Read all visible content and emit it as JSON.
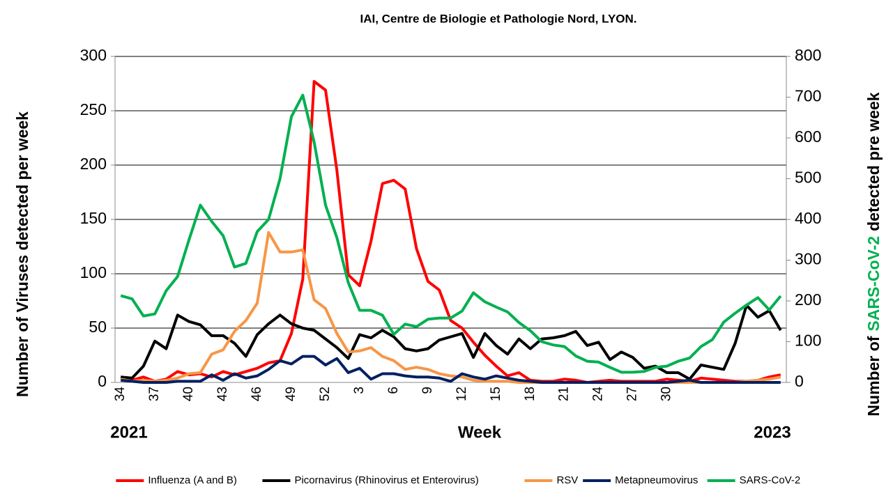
{
  "chart_data": {
    "type": "line",
    "title": "IAI, Centre de Biologie et Pathologie Nord, LYON.",
    "ylabel": "Number of Viruses detected  per week",
    "y2label": [
      "Number of",
      "SARS-CoV-2",
      "detected  pre week"
    ],
    "xlabel": "Week",
    "annotations": [
      "2021",
      "2023"
    ],
    "categories": [
      34,
      null,
      null,
      37,
      null,
      null,
      40,
      null,
      null,
      43,
      null,
      null,
      46,
      null,
      null,
      49,
      null,
      null,
      52,
      null,
      null,
      3,
      null,
      null,
      6,
      null,
      null,
      9,
      null,
      null,
      12,
      null,
      null,
      15,
      null,
      null,
      18,
      null,
      null,
      21,
      null,
      null,
      24,
      null,
      null,
      27,
      null,
      null,
      30,
      null,
      null,
      null,
      null,
      null,
      null,
      null,
      null,
      null,
      null
    ],
    "ylim": [
      0,
      300
    ],
    "yticks": [
      0,
      50,
      100,
      150,
      200,
      250,
      300
    ],
    "y2lim": [
      0,
      800
    ],
    "y2ticks": [
      0,
      100,
      200,
      300,
      400,
      500,
      600,
      700,
      800
    ],
    "grid": true,
    "legend": "bottom",
    "series": [
      {
        "name": "Influenza (A and B)",
        "color": "#ff0000",
        "values": [
          5,
          2,
          5,
          1,
          3,
          10,
          7,
          8,
          5,
          10,
          7,
          10,
          13,
          18,
          20,
          45,
          95,
          277,
          269,
          195,
          99,
          89,
          130,
          183,
          186,
          178,
          123,
          93,
          85,
          57,
          50,
          37,
          25,
          15,
          6,
          9,
          2,
          1,
          1,
          3,
          2,
          0,
          1,
          2,
          1,
          1,
          1,
          1,
          3,
          2,
          1,
          4,
          3,
          2,
          1,
          1,
          2,
          5,
          7
        ]
      },
      {
        "name": "Picornavirus (Rhinovirus et Enterovirus)",
        "color": "#000000",
        "values": [
          5,
          4,
          15,
          38,
          31,
          62,
          56,
          53,
          43,
          43,
          36,
          24,
          44,
          54,
          62,
          54,
          50,
          48,
          40,
          32,
          22,
          44,
          41,
          48,
          42,
          31,
          29,
          31,
          39,
          42,
          45,
          23,
          45,
          34,
          26,
          40,
          31,
          40,
          41,
          43,
          47,
          34,
          37,
          21,
          28,
          23,
          13,
          15,
          9,
          9,
          3,
          16,
          14,
          12,
          36,
          71,
          60,
          66,
          48
        ]
      },
      {
        "name": "RSV",
        "color": "#f79646",
        "values": [
          3,
          1,
          2,
          1,
          2,
          4,
          8,
          9,
          26,
          30,
          47,
          57,
          73,
          138,
          120,
          120,
          122,
          76,
          68,
          45,
          28,
          29,
          32,
          24,
          20,
          12,
          14,
          12,
          8,
          6,
          5,
          2,
          1,
          1,
          1,
          0,
          0,
          0,
          0,
          0,
          0,
          0,
          0,
          0,
          0,
          0,
          0,
          0,
          0,
          0,
          0,
          0,
          0,
          0,
          0,
          1,
          2,
          3,
          5
        ]
      },
      {
        "name": "Metapneumovirus",
        "color": "#002060",
        "values": [
          2,
          1,
          0,
          0,
          0,
          1,
          1,
          1,
          7,
          2,
          8,
          4,
          6,
          12,
          20,
          17,
          24,
          24,
          16,
          22,
          9,
          13,
          3,
          8,
          8,
          6,
          5,
          5,
          4,
          1,
          8,
          5,
          3,
          6,
          4,
          2,
          1,
          0,
          0,
          0,
          0,
          0,
          0,
          0,
          0,
          0,
          0,
          0,
          0,
          1,
          2,
          0,
          0,
          0,
          0,
          0,
          0,
          0,
          0
        ]
      },
      {
        "name": "SARS-CoV-2",
        "color": "#00b050",
        "axis": "y2",
        "values": [
          213,
          205,
          163,
          168,
          225,
          260,
          350,
          435,
          395,
          360,
          283,
          292,
          370,
          400,
          500,
          652,
          705,
          590,
          435,
          355,
          245,
          177,
          177,
          165,
          118,
          143,
          137,
          155,
          158,
          158,
          175,
          220,
          198,
          185,
          173,
          147,
          127,
          100,
          92,
          88,
          65,
          52,
          50,
          37,
          25,
          25,
          27,
          37,
          40,
          52,
          60,
          88,
          105,
          148,
          170,
          190,
          208,
          178,
          212
        ]
      }
    ]
  }
}
